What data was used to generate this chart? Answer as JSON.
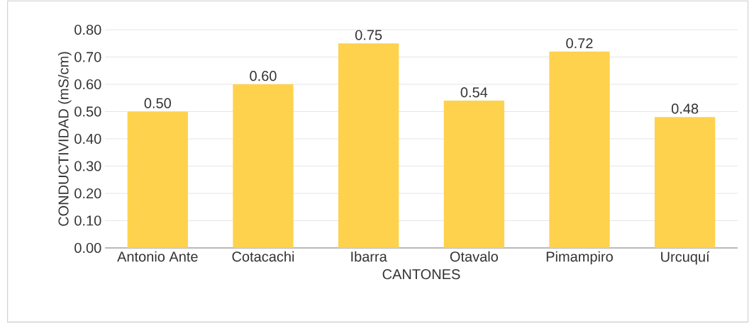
{
  "chart_data": {
    "type": "bar",
    "xlabel": "CANTONES",
    "ylabel": "CONDUCTIVIDAD (mS/cm)",
    "categories": [
      "Antonio Ante",
      "Cotacachi",
      "Ibarra",
      "Otavalo",
      "Pimampiro",
      "Urcuquí"
    ],
    "values": [
      0.5,
      0.6,
      0.75,
      0.54,
      0.72,
      0.48
    ],
    "value_labels": [
      "0.50",
      "0.60",
      "0.75",
      "0.54",
      "0.72",
      "0.48"
    ],
    "color": "#ffd24d",
    "ylim": [
      0,
      0.8
    ],
    "yticks": [
      {
        "value": 0,
        "label": "0.00"
      },
      {
        "value": 0.1,
        "label": "0.10"
      },
      {
        "value": 0.2,
        "label": "0.20"
      },
      {
        "value": 0.3,
        "label": "0.30"
      },
      {
        "value": 0.4,
        "label": "0.40"
      },
      {
        "value": 0.5,
        "label": "0.50"
      },
      {
        "value": 0.6,
        "label": "0.60"
      },
      {
        "value": 0.7,
        "label": "0.70"
      },
      {
        "value": 0.8,
        "label": "0.80"
      }
    ],
    "grid": "y"
  }
}
